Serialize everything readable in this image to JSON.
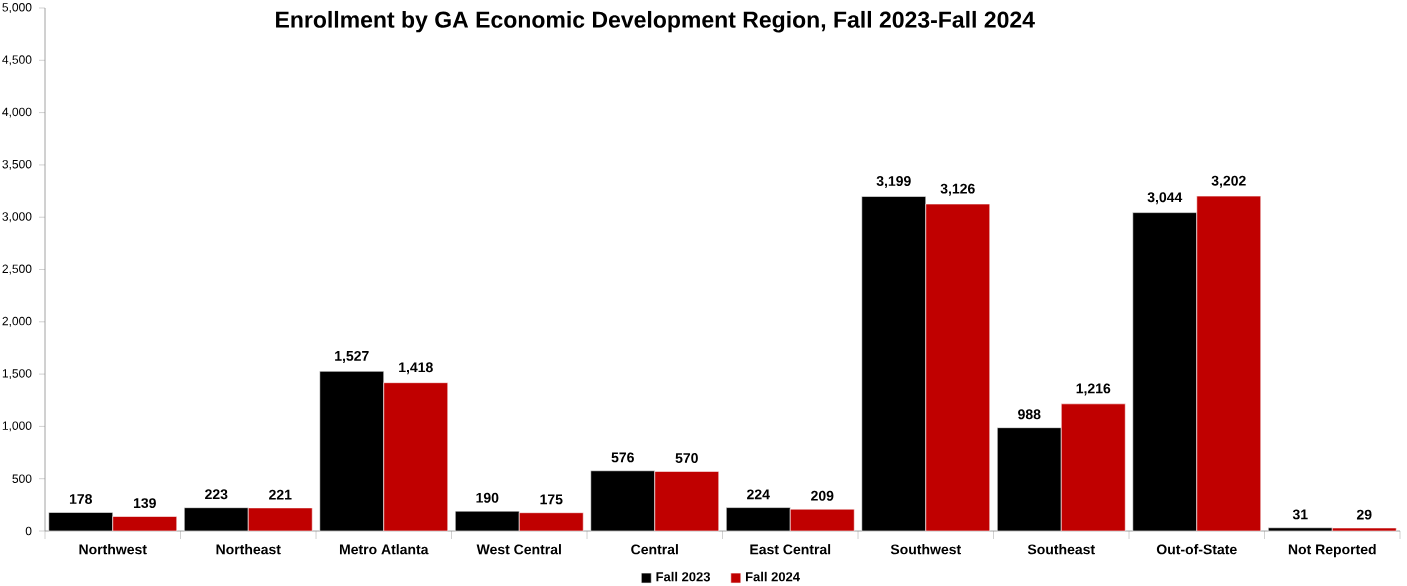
{
  "chart_data": {
    "type": "bar",
    "title": "Enrollment by GA Economic Development Region, Fall 2023-Fall 2024",
    "categories": [
      "Northwest",
      "Northeast",
      "Metro Atlanta",
      "West Central",
      "Central",
      "East Central",
      "Southwest",
      "Southeast",
      "Out-of-State",
      "Not Reported"
    ],
    "series": [
      {
        "name": "Fall 2023",
        "color": "#000000",
        "values": [
          178,
          223,
          1527,
          190,
          576,
          224,
          3199,
          988,
          3044,
          31
        ],
        "value_labels": [
          "178",
          "223",
          "1,527",
          "190",
          "576",
          "224",
          "3,199",
          "988",
          "3,044",
          "31"
        ]
      },
      {
        "name": "Fall 2024",
        "color": "#c00000",
        "values": [
          139,
          221,
          1418,
          175,
          570,
          209,
          3126,
          1216,
          3202,
          29
        ],
        "value_labels": [
          "139",
          "221",
          "1,418",
          "175",
          "570",
          "209",
          "3,126",
          "1,216",
          "3,202",
          "29"
        ]
      }
    ],
    "ylim": [
      0,
      5000
    ],
    "yticks": [
      0,
      500,
      {
        "value": 1000,
        "label": "1,000"
      },
      {
        "value": 1500,
        "label": "1,500"
      },
      {
        "value": 2000,
        "label": "2,000"
      },
      {
        "value": 2500,
        "label": "2,500"
      },
      {
        "value": 3000,
        "label": "3,000"
      },
      {
        "value": 3500,
        "label": "3,500"
      },
      {
        "value": 4000,
        "label": "4,000"
      },
      {
        "value": 4500,
        "label": "4,500"
      },
      {
        "value": 5000,
        "label": "5,000"
      }
    ],
    "grid": false,
    "legend": "bottom"
  }
}
